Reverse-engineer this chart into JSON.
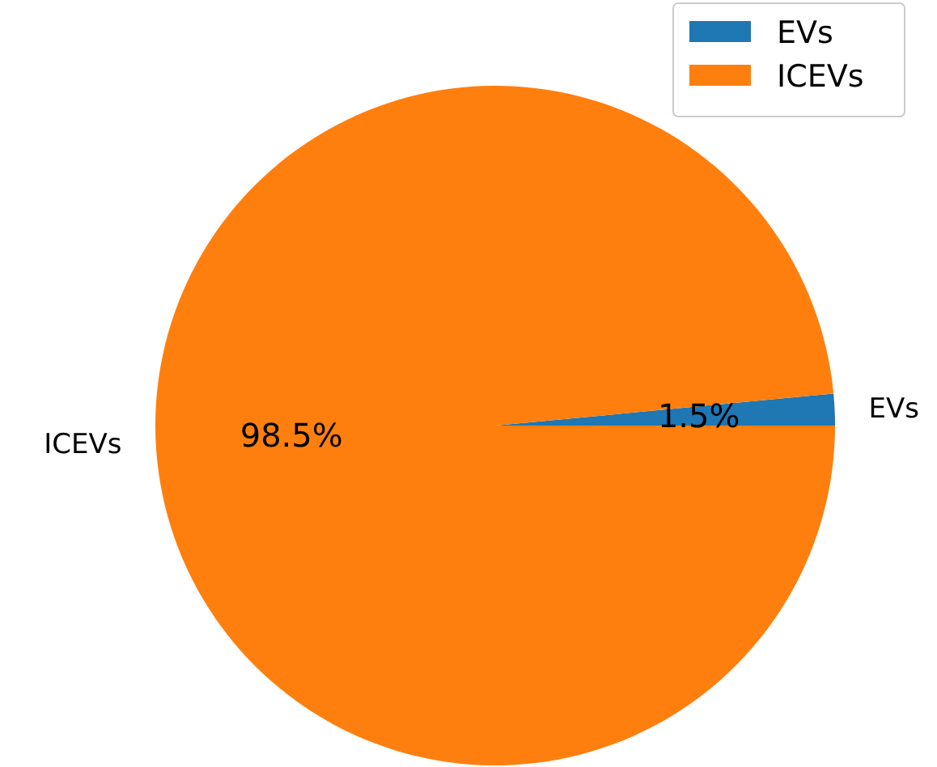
{
  "chart_data": {
    "type": "pie",
    "categories": [
      "EVs",
      "ICEVs"
    ],
    "values": [
      1.5,
      98.5
    ],
    "colors": [
      "#1f77b4",
      "#ff7f0e"
    ],
    "value_labels": [
      "1.5%",
      "98.5%"
    ],
    "legend": "top right"
  }
}
